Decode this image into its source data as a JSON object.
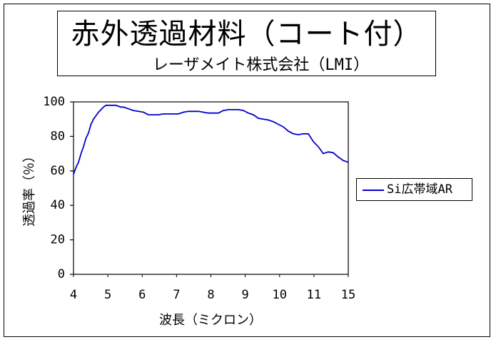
{
  "chart_data": {
    "type": "line",
    "title": "赤外透過材料（コート付）",
    "subtitle": "レーザメイト株式会社（LMI）",
    "xlabel": "波長（ミクロン）",
    "ylabel": "透過率（％）",
    "x_tick_labels": [
      "4",
      "5",
      "6",
      "7",
      "8",
      "9",
      "10",
      "11",
      "15"
    ],
    "y_tick_labels": [
      "0",
      "20",
      "40",
      "60",
      "80",
      "100"
    ],
    "ylim": [
      0,
      100
    ],
    "grid": false,
    "legend_position": "right",
    "series": [
      {
        "name": "Si広帯域AR",
        "color": "#0000cc",
        "x": [
          4.0,
          4.1,
          4.2,
          4.3,
          4.4,
          4.5,
          4.6,
          4.7,
          4.8,
          4.9,
          5.0,
          5.1,
          5.2,
          5.3,
          5.4,
          5.5,
          5.6,
          5.7,
          5.8,
          5.9,
          6.0,
          6.2,
          6.4,
          6.6,
          6.8,
          7.0,
          7.2,
          7.4,
          7.6,
          7.8,
          8.0,
          8.2,
          8.4,
          8.6,
          8.8,
          9.0,
          9.2,
          9.4,
          9.6,
          9.8,
          10.0,
          10.2,
          10.4,
          10.6,
          10.8,
          11.0,
          11.2,
          11.4,
          11.6,
          11.8,
          12.0,
          12.2,
          12.4,
          12.6,
          12.8,
          13.0,
          13.2,
          13.4,
          13.6,
          13.8,
          14.0,
          14.2,
          14.4,
          14.6,
          14.8,
          15.0
        ],
        "values": [
          58,
          62,
          65,
          70,
          74,
          79,
          82,
          87,
          90,
          92,
          94,
          95.5,
          97,
          98,
          98,
          98,
          98,
          98,
          97.5,
          97,
          97,
          96,
          95,
          94.5,
          94,
          92.5,
          92.5,
          92.5,
          93,
          93,
          93,
          93,
          94,
          94.5,
          94.5,
          94.5,
          94,
          93.5,
          93.5,
          93.5,
          95,
          95.5,
          95.5,
          95.5,
          95,
          93.5,
          92.5,
          90.5,
          90,
          89.5,
          88.5,
          87,
          85.5,
          83,
          81.5,
          81,
          81.5,
          81.5,
          77,
          74,
          70,
          71,
          70.5,
          68,
          66,
          65
        ]
      }
    ]
  }
}
